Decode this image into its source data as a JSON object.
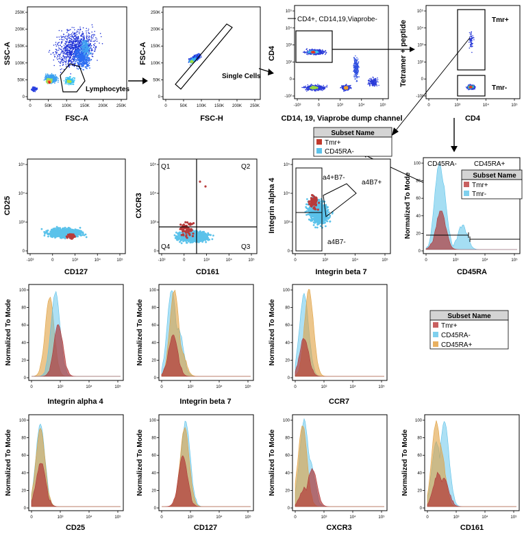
{
  "colors": {
    "tmr_pos": "#b83b3b",
    "ra_neg": "#5bc2ea",
    "ra_pos": "#e0a040",
    "axis": "#000000",
    "legend_header": "#d4d4d4"
  },
  "legends": {
    "top": {
      "title": "Subset Name",
      "items": [
        {
          "label": "Tmr+",
          "color": "#c0392b"
        },
        {
          "label": "CD45RA-",
          "color": "#5bc2ea"
        }
      ]
    },
    "ra": {
      "title": "Subset Name",
      "items": [
        {
          "label": "Tmr+",
          "color": "#c86060"
        },
        {
          "label": "Tmr-",
          "color": "#7fd0ee"
        }
      ]
    },
    "mid": {
      "title": "Subset Name",
      "items": [
        {
          "label": "Tmr+",
          "color": "#c86060"
        },
        {
          "label": "CD45RA-",
          "color": "#7fd0ee"
        },
        {
          "label": "CD45RA+",
          "color": "#e8b060"
        }
      ]
    }
  },
  "chart_data": [
    {
      "type": "scatter",
      "id": "p1",
      "xlabel": "FSC-A",
      "ylabel": "SSC-A",
      "xticks": [
        "0",
        "50K",
        "100K",
        "150K",
        "200K",
        "250K"
      ],
      "yticks": [
        "0",
        "50K",
        "100K",
        "150K",
        "200K",
        "250K"
      ],
      "annotations": [
        "Lymphocytes"
      ],
      "xlim": [
        0,
        262144
      ],
      "ylim": [
        0,
        262144
      ]
    },
    {
      "type": "scatter",
      "id": "p2",
      "xlabel": "FSC-H",
      "ylabel": "FSC-A",
      "xticks": [
        "0",
        "50K",
        "100K",
        "150K",
        "200K",
        "250K"
      ],
      "yticks": [
        "0",
        "50K",
        "100K",
        "150K",
        "200K",
        "250K"
      ],
      "annotations": [
        "Single Cells"
      ]
    },
    {
      "type": "scatter",
      "id": "p3",
      "xlabel": "CD14, 19, Viaprobe dump channel",
      "ylabel": "CD4",
      "xticks": [
        "-10³",
        "0",
        "10³",
        "10⁴",
        "10⁵"
      ],
      "yticks": [
        "-10²",
        "0",
        "10²",
        "10³",
        "10⁴",
        "10⁵"
      ],
      "annotations": [
        "CD4+, CD14,19,Viaprobe-"
      ]
    },
    {
      "type": "scatter",
      "id": "p4",
      "xlabel": "CD4",
      "ylabel": "Tetramer + peptide",
      "xticks": [
        "0",
        "10³",
        "10⁴",
        "10⁵"
      ],
      "yticks": [
        "-10²",
        "0",
        "10²",
        "10³",
        "10⁴",
        "10⁵"
      ],
      "annotations": [
        "Tmr+",
        "Tmr-"
      ]
    },
    {
      "type": "scatter",
      "id": "p5",
      "xlabel": "CD127",
      "ylabel": "CD25",
      "xticks": [
        "-10³",
        "0",
        "10³",
        "10⁴",
        "10⁵"
      ],
      "yticks": [
        "0",
        "10³",
        "10⁴",
        "10⁵"
      ]
    },
    {
      "type": "scatter",
      "id": "p6",
      "xlabel": "CD161",
      "ylabel": "CXCR3",
      "xticks": [
        "-10³",
        "0",
        "10³",
        "10⁴",
        "10⁵"
      ],
      "yticks": [
        "0",
        "10³",
        "10⁴",
        "10⁵"
      ],
      "annotations": [
        "Q1",
        "Q2",
        "Q3",
        "Q4"
      ]
    },
    {
      "type": "scatter",
      "id": "p7",
      "xlabel": "Integrin beta 7",
      "ylabel": "Integrin alpha 4",
      "xticks": [
        "0",
        "10³",
        "10⁴",
        "10⁵"
      ],
      "yticks": [
        "0",
        "10³",
        "10⁴",
        "10⁵"
      ],
      "annotations": [
        "a4+B7-",
        "a4B7+",
        "a4B7-"
      ]
    },
    {
      "type": "area",
      "id": "p8",
      "xlabel": "CD45RA",
      "ylabel": "Normalized To Mode",
      "xticks": [
        "0",
        "10³",
        "10⁴",
        "10⁵"
      ],
      "yticks": [
        "0",
        "20",
        "40",
        "60",
        "80",
        "100"
      ],
      "annotations": [
        "CD45RA-",
        "CD45RA+"
      ],
      "series": [
        {
          "name": "Tmr-",
          "peaks": [
            [
              0.3,
              100
            ],
            [
              0.45,
              82
            ],
            [
              1.7,
              28
            ]
          ]
        },
        {
          "name": "Tmr+",
          "peaks": [
            [
              0.4,
              46
            ],
            [
              0.2,
              18
            ]
          ]
        }
      ]
    },
    {
      "type": "area",
      "id": "p9",
      "xlabel": "Integrin alpha 4",
      "ylabel": "Normalized To Mode",
      "xticks": [
        "0",
        "10³",
        "10⁴",
        "10⁵"
      ],
      "yticks": [
        "0",
        "20",
        "40",
        "60",
        "80",
        "100"
      ],
      "series": [
        {
          "name": "CD45RA+",
          "peaks": [
            [
              0.62,
              92
            ]
          ]
        },
        {
          "name": "CD45RA-",
          "peaks": [
            [
              0.98,
              97
            ]
          ]
        },
        {
          "name": "Tmr+",
          "peaks": [
            [
              1.16,
              60
            ]
          ]
        }
      ]
    },
    {
      "type": "area",
      "id": "p10",
      "xlabel": "Integrin beta 7",
      "ylabel": "Normalized To Mode",
      "xticks": [
        "0",
        "10³",
        "10⁴",
        "10⁵"
      ],
      "yticks": [
        "0",
        "20",
        "40",
        "60",
        "80",
        "100"
      ],
      "series": [
        {
          "name": "CD45RA-",
          "peaks": [
            [
              0.12,
              100
            ],
            [
              0.55,
              55
            ]
          ]
        },
        {
          "name": "CD45RA+",
          "peaks": [
            [
              0.28,
              100
            ],
            [
              0.7,
              30
            ]
          ]
        },
        {
          "name": "Tmr+",
          "peaks": [
            [
              0.2,
              48
            ]
          ]
        }
      ]
    },
    {
      "type": "area",
      "id": "p11",
      "xlabel": "CCR7",
      "ylabel": "Normalized To Mode",
      "xticks": [
        "0",
        "10³",
        "10⁴",
        "10⁵"
      ],
      "yticks": [
        "0",
        "20",
        "40",
        "60",
        "80",
        "100"
      ],
      "series": [
        {
          "name": "CD45RA-",
          "peaks": [
            [
              0.05,
              96
            ]
          ]
        },
        {
          "name": "CD45RA+",
          "peaks": [
            [
              0.35,
              100
            ]
          ]
        },
        {
          "name": "Tmr+",
          "peaks": [
            [
              0.05,
              45
            ]
          ]
        }
      ]
    },
    {
      "type": "area",
      "id": "p12",
      "xlabel": "CD25",
      "ylabel": "Normalized To Mode",
      "xticks": [
        "0",
        "10³",
        "10⁴",
        "10⁵"
      ],
      "yticks": [
        "0",
        "20",
        "40",
        "60",
        "80",
        "100"
      ],
      "series": [
        {
          "name": "CD45RA-",
          "peaks": [
            [
              0.05,
              96
            ]
          ]
        },
        {
          "name": "CD45RA+",
          "peaks": [
            [
              0.05,
              90
            ]
          ]
        },
        {
          "name": "Tmr+",
          "peaks": [
            [
              0.08,
              52
            ]
          ]
        }
      ]
    },
    {
      "type": "area",
      "id": "p13",
      "xlabel": "CD127",
      "ylabel": "Normalized To Mode",
      "xticks": [
        "0",
        "10³",
        "10⁴",
        "10⁵"
      ],
      "yticks": [
        "0",
        "20",
        "40",
        "60",
        "80",
        "100"
      ],
      "series": [
        {
          "name": "CD45RA-",
          "peaks": [
            [
              0.98,
              98
            ]
          ]
        },
        {
          "name": "CD45RA+",
          "peaks": [
            [
              0.92,
              92
            ]
          ]
        },
        {
          "name": "Tmr+",
          "peaks": [
            [
              0.82,
              58
            ]
          ]
        }
      ]
    },
    {
      "type": "area",
      "id": "p14",
      "xlabel": "CXCR3",
      "ylabel": "Normalized To Mode",
      "xticks": [
        "0",
        "10³",
        "10⁴",
        "10⁵"
      ],
      "yticks": [
        "0",
        "20",
        "40",
        "60",
        "80",
        "100"
      ],
      "series": [
        {
          "name": "CD45RA-",
          "peaks": [
            [
              0.05,
              100
            ],
            [
              0.4,
              55
            ]
          ]
        },
        {
          "name": "CD45RA+",
          "peaks": [
            [
              -0.05,
              95
            ]
          ]
        },
        {
          "name": "Tmr+",
          "peaks": [
            [
              0.55,
              44
            ],
            [
              0.1,
              22
            ]
          ]
        }
      ]
    },
    {
      "type": "area",
      "id": "p15",
      "xlabel": "CD161",
      "ylabel": "Normalized To Mode",
      "xticks": [
        "0",
        "10³",
        "10⁴",
        "10⁵"
      ],
      "yticks": [
        "0",
        "20",
        "40",
        "60",
        "80",
        "100"
      ],
      "series": [
        {
          "name": "CD45RA-",
          "peaks": [
            [
              0.55,
              100
            ],
            [
              0.05,
              75
            ]
          ]
        },
        {
          "name": "CD45RA+",
          "peaks": [
            [
              0.05,
              98
            ],
            [
              0.3,
              70
            ]
          ]
        },
        {
          "name": "Tmr+",
          "peaks": [
            [
              0.15,
              38
            ],
            [
              0.55,
              32
            ]
          ]
        }
      ]
    }
  ]
}
